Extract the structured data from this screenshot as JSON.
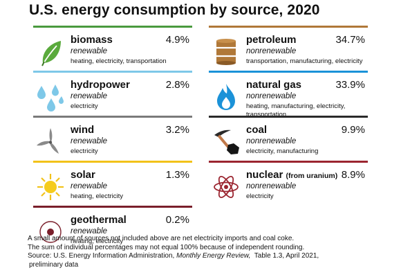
{
  "title": "U.S. energy consumption by source, 2020",
  "chart_data": {
    "type": "table",
    "title": "U.S. energy consumption by source, 2020",
    "unit": "%",
    "sources": [
      {
        "name": "biomass",
        "percent": 4.9,
        "percent_label": "4.9%",
        "type": "renewable",
        "uses": "heating, electricity, transportation",
        "color": "#4a9a3e",
        "icon": "leaf-icon"
      },
      {
        "name": "hydropower",
        "percent": 2.8,
        "percent_label": "2.8%",
        "type": "renewable",
        "uses": "electricity",
        "color": "#7ec8e8",
        "icon": "water-drops-icon"
      },
      {
        "name": "wind",
        "percent": 3.2,
        "percent_label": "3.2%",
        "type": "renewable",
        "uses": "electricity",
        "color": "#7a7a7a",
        "icon": "wind-turbine-icon"
      },
      {
        "name": "solar",
        "percent": 1.3,
        "percent_label": "1.3%",
        "type": "renewable",
        "uses": "heating, electricity",
        "color": "#f2c21a",
        "icon": "sun-icon"
      },
      {
        "name": "geothermal",
        "percent": 0.2,
        "percent_label": "0.2%",
        "type": "renewable",
        "uses": "heating, electricity",
        "color": "#7a1f2b",
        "icon": "geothermal-icon"
      },
      {
        "name": "petroleum",
        "percent": 34.7,
        "percent_label": "34.7%",
        "type": "nonrenewable",
        "uses": "transportation, manufacturing, electricity",
        "color": "#b07838",
        "icon": "oil-barrel-icon"
      },
      {
        "name": "natural gas",
        "percent": 33.9,
        "percent_label": "33.9%",
        "type": "nonrenewable",
        "uses": "heating, manufacturing, electricity, transportation",
        "color": "#1b92d8",
        "icon": "gas-flame-icon"
      },
      {
        "name": "coal",
        "percent": 9.9,
        "percent_label": "9.9%",
        "type": "nonrenewable",
        "uses": "electricity, manufacturing",
        "color": "#2a2a2a",
        "icon": "coal-pickaxe-icon"
      },
      {
        "name": "nuclear",
        "name_suffix": "(from uranium)",
        "percent": 8.9,
        "percent_label": "8.9%",
        "type": "nonrenewable",
        "uses": "electricity",
        "color": "#9b2530",
        "icon": "atom-icon"
      }
    ]
  },
  "notes": {
    "line1": "A small amount of sources not included above are net electricity imports and coal coke.",
    "line2": "The sum of individual percentages may not equal 100% because of independent rounding.",
    "source_prefix": "Source: U.S. Energy Information Administration, ",
    "source_publication": "Monthly Energy Review,",
    "source_suffix": "  Table 1.3, April 2021,",
    "source_line2": "preliminary data"
  }
}
